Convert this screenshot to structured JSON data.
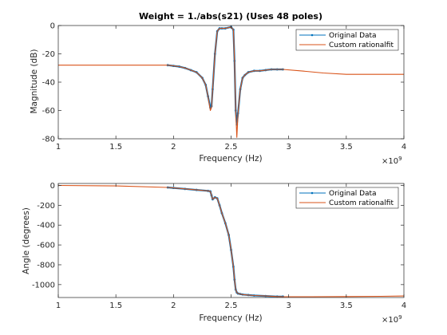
{
  "chart_data": [
    {
      "type": "line",
      "title": "Weight = 1./abs(s21) (Uses 48 poles)",
      "xlabel": "Frequency (Hz)",
      "ylabel": "Magnitude (dB)",
      "xlim": [
        1,
        4
      ],
      "ylim": [
        -80,
        0
      ],
      "x_exponent_label": "×10",
      "x_exponent": "9",
      "xticks": [
        "1",
        "1.5",
        "2",
        "2.5",
        "3",
        "3.5",
        "4"
      ],
      "yticks": [
        "0",
        "-20",
        "-40",
        "-60",
        "-80"
      ],
      "grid": false,
      "legend_position": "top-right",
      "legend": [
        "Original Data",
        "Custom rationalfit"
      ],
      "series": [
        {
          "name": "Original Data",
          "color": "#0072BD",
          "marker": "dot",
          "x": [
            1.95,
            2.0,
            2.05,
            2.1,
            2.15,
            2.2,
            2.25,
            2.28,
            2.3,
            2.32,
            2.33,
            2.34,
            2.36,
            2.38,
            2.4,
            2.42,
            2.45,
            2.5,
            2.52,
            2.53,
            2.54,
            2.55,
            2.56,
            2.58,
            2.6,
            2.62,
            2.65,
            2.7,
            2.75,
            2.8,
            2.85,
            2.9,
            2.95
          ],
          "y": [
            -28,
            -28.5,
            -29,
            -30,
            -31.5,
            -33,
            -37,
            -42,
            -50,
            -58,
            -57,
            -45,
            -20,
            -4,
            -2,
            -2,
            -2,
            -1,
            -3,
            -25,
            -60,
            -70,
            -62,
            -45,
            -37,
            -35,
            -33,
            -32,
            -32,
            -31.5,
            -31,
            -31,
            -31
          ]
        },
        {
          "name": "Custom rationalfit",
          "color": "#D95319",
          "x": [
            1.0,
            1.5,
            1.95,
            2.0,
            2.05,
            2.1,
            2.15,
            2.2,
            2.25,
            2.28,
            2.3,
            2.32,
            2.33,
            2.34,
            2.36,
            2.38,
            2.4,
            2.42,
            2.45,
            2.5,
            2.52,
            2.53,
            2.54,
            2.55,
            2.56,
            2.58,
            2.6,
            2.62,
            2.65,
            2.7,
            2.75,
            2.8,
            2.85,
            2.9,
            2.95,
            3.1,
            3.3,
            3.5,
            3.7,
            4.0
          ],
          "y": [
            -28,
            -28,
            -28,
            -28.5,
            -29,
            -30,
            -31.5,
            -33,
            -37,
            -42,
            -50,
            -60,
            -58,
            -45,
            -20,
            -4,
            -2,
            -2,
            -2,
            -1,
            -3,
            -25,
            -60,
            -79,
            -62,
            -45,
            -37,
            -35,
            -33,
            -32,
            -32,
            -31.5,
            -31,
            -31,
            -31,
            -32,
            -33.5,
            -34.5,
            -34.5,
            -34.5
          ]
        }
      ]
    },
    {
      "type": "line",
      "title": "",
      "xlabel": "Frequency (Hz)",
      "ylabel": "Angle (degrees)",
      "xlim": [
        1,
        4
      ],
      "ylim": [
        -1130,
        20
      ],
      "x_exponent_label": "×10",
      "x_exponent": "9",
      "xticks": [
        "1",
        "1.5",
        "2",
        "2.5",
        "3",
        "3.5",
        "4"
      ],
      "yticks": [
        "0",
        "-200",
        "-400",
        "-600",
        "-800",
        "-1000"
      ],
      "grid": false,
      "legend_position": "top-right",
      "legend": [
        "Original Data",
        "Custom rationalfit"
      ],
      "series": [
        {
          "name": "Original Data",
          "color": "#0072BD",
          "marker": "dot",
          "x": [
            1.95,
            2.0,
            2.1,
            2.2,
            2.3,
            2.32,
            2.33,
            2.34,
            2.36,
            2.38,
            2.4,
            2.42,
            2.45,
            2.48,
            2.5,
            2.52,
            2.53,
            2.54,
            2.55,
            2.56,
            2.58,
            2.6,
            2.65,
            2.7,
            2.8,
            2.9,
            2.95
          ],
          "y": [
            -20,
            -25,
            -35,
            -45,
            -55,
            -60,
            -100,
            -140,
            -120,
            -130,
            -200,
            -280,
            -380,
            -500,
            -650,
            -820,
            -950,
            -1050,
            -1080,
            -1090,
            -1095,
            -1100,
            -1105,
            -1110,
            -1115,
            -1120,
            -1120
          ]
        },
        {
          "name": "Custom rationalfit",
          "color": "#D95319",
          "x": [
            1.0,
            1.5,
            1.95,
            2.0,
            2.1,
            2.2,
            2.3,
            2.32,
            2.33,
            2.34,
            2.36,
            2.38,
            2.4,
            2.42,
            2.45,
            2.48,
            2.5,
            2.52,
            2.53,
            2.54,
            2.55,
            2.56,
            2.58,
            2.6,
            2.65,
            2.7,
            2.8,
            2.9,
            2.95,
            3.2,
            3.5,
            3.8,
            4.0
          ],
          "y": [
            0,
            -5,
            -20,
            -25,
            -35,
            -45,
            -55,
            -60,
            -100,
            -140,
            -120,
            -130,
            -200,
            -280,
            -380,
            -500,
            -650,
            -820,
            -950,
            -1050,
            -1080,
            -1090,
            -1095,
            -1100,
            -1105,
            -1110,
            -1115,
            -1120,
            -1122,
            -1122,
            -1120,
            -1118,
            -1115
          ]
        }
      ]
    }
  ]
}
